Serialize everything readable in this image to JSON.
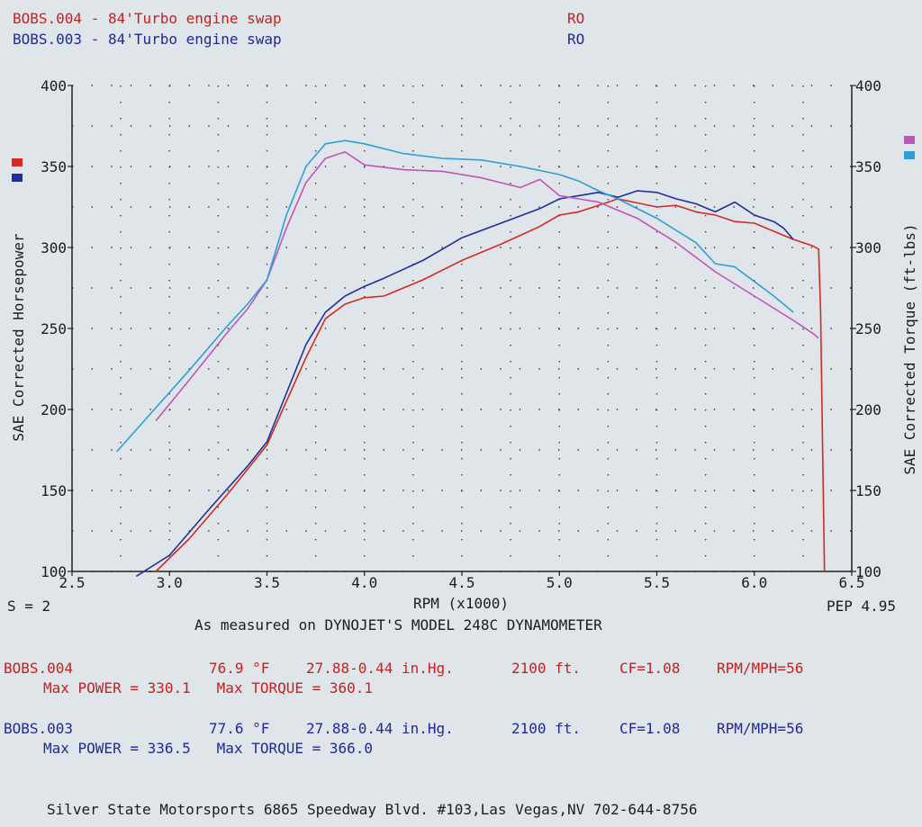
{
  "header": {
    "run1": {
      "label": "BOBS.004 - 84'Turbo engine swap",
      "code": "RO"
    },
    "run2": {
      "label": "BOBS.003 - 84'Turbo engine swap",
      "code": "RO"
    }
  },
  "footer": {
    "smoothing": "S = 2",
    "pep": "PEP 4.95",
    "measured": "As measured on DYNOJET'S MODEL 248C DYNAMOMETER",
    "run1": {
      "name": "BOBS.004",
      "temp": "76.9 °F",
      "baro": "27.88-0.44 in.Hg.",
      "alt": "2100 ft.",
      "cf": "CF=1.08",
      "ratio": "RPM/MPH=56",
      "max": "Max POWER = 330.1   Max TORQUE = 360.1"
    },
    "run2": {
      "name": "BOBS.003",
      "temp": "77.6 °F",
      "baro": "27.88-0.44 in.Hg.",
      "alt": "2100 ft.",
      "cf": "CF=1.08",
      "ratio": "RPM/MPH=56",
      "max": "Max POWER = 336.5   Max TORQUE = 366.0"
    },
    "address": "Silver State Motorsports 6865 Speedway Blvd. #103,Las Vegas,NV 702-644-8756"
  },
  "chart_data": {
    "type": "line",
    "xlabel": "RPM (x1000)",
    "ylabel_left": "SAE Corrected Horsepower",
    "ylabel_right": "SAE Corrected Torque (ft-lbs)",
    "xlim": [
      2.5,
      6.5
    ],
    "ylim": [
      100,
      400
    ],
    "x_ticks": [
      "2.5",
      "3.0",
      "3.5",
      "4.0",
      "4.5",
      "5.0",
      "5.5",
      "6.0",
      "6.5"
    ],
    "y_ticks": [
      "100",
      "150",
      "200",
      "250",
      "300",
      "350",
      "400"
    ],
    "grid": true,
    "colors": {
      "hp_004": "#d42a25",
      "hp_003": "#1f2f9c",
      "tq_004": "#c054b8",
      "tq_003": "#2f9ed8"
    },
    "series": [
      {
        "key": "hp_004",
        "x": [
          2.93,
          3.1,
          3.3,
          3.5,
          3.6,
          3.7,
          3.8,
          3.9,
          4.0,
          4.1,
          4.3,
          4.5,
          4.7,
          4.9,
          5.0,
          5.1,
          5.2,
          5.3,
          5.5,
          5.6,
          5.7,
          5.8,
          5.9,
          6.0,
          6.1,
          6.2,
          6.3,
          6.33,
          6.34,
          6.35,
          6.36
        ],
        "y": [
          100,
          120,
          148,
          178,
          205,
          232,
          256,
          265,
          269,
          270,
          280,
          292,
          302,
          313,
          320,
          322,
          326,
          330,
          325,
          326,
          322,
          320,
          316,
          315,
          310,
          305,
          301,
          299,
          260,
          180,
          100
        ]
      },
      {
        "key": "hp_003",
        "x": [
          2.83,
          3.0,
          3.2,
          3.4,
          3.5,
          3.6,
          3.7,
          3.8,
          3.9,
          4.0,
          4.1,
          4.3,
          4.5,
          4.7,
          4.9,
          5.0,
          5.1,
          5.2,
          5.3,
          5.4,
          5.5,
          5.6,
          5.7,
          5.8,
          5.9,
          6.0,
          6.1,
          6.15,
          6.2
        ],
        "y": [
          97,
          110,
          138,
          165,
          180,
          210,
          240,
          260,
          270,
          276,
          281,
          292,
          306,
          315,
          324,
          330,
          332,
          334,
          331,
          335,
          334,
          330,
          327,
          322,
          328,
          320,
          316,
          312,
          305
        ]
      },
      {
        "key": "tq_004",
        "x": [
          2.93,
          3.1,
          3.3,
          3.4,
          3.5,
          3.6,
          3.7,
          3.8,
          3.9,
          4.0,
          4.2,
          4.4,
          4.6,
          4.8,
          4.9,
          5.0,
          5.1,
          5.2,
          5.4,
          5.6,
          5.8,
          6.0,
          6.2,
          6.3,
          6.33
        ],
        "y": [
          193,
          218,
          248,
          262,
          280,
          312,
          340,
          355,
          359,
          351,
          348,
          347,
          343,
          337,
          342,
          332,
          330,
          328,
          318,
          303,
          285,
          270,
          255,
          247,
          244
        ]
      },
      {
        "key": "tq_003",
        "x": [
          2.73,
          2.9,
          3.1,
          3.3,
          3.4,
          3.5,
          3.6,
          3.7,
          3.8,
          3.9,
          4.0,
          4.2,
          4.4,
          4.6,
          4.8,
          5.0,
          5.1,
          5.2,
          5.3,
          5.5,
          5.7,
          5.8,
          5.9,
          6.0,
          6.1,
          6.2
        ],
        "y": [
          174,
          197,
          224,
          252,
          265,
          280,
          320,
          350,
          364,
          366,
          364,
          358,
          355,
          354,
          350,
          345,
          341,
          335,
          330,
          318,
          303,
          290,
          288,
          279,
          270,
          260
        ]
      }
    ]
  }
}
